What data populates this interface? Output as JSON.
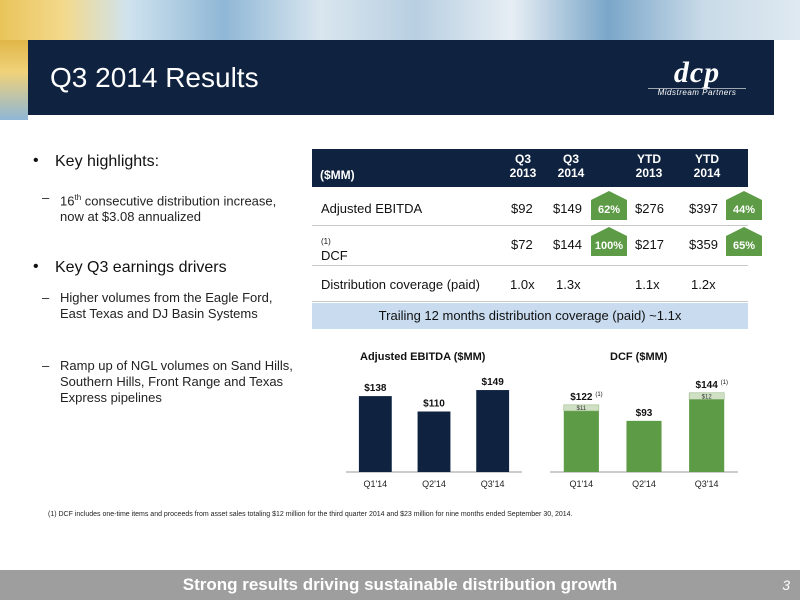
{
  "slide": {
    "title": "Q3 2014 Results",
    "logo_main": "dcp",
    "logo_sub": "Midstream Partners",
    "page_number": "3",
    "footer_text": "Strong results driving sustainable distribution growth",
    "colors": {
      "navy": "#0f2340",
      "green": "#5e9b47",
      "light_blue": "#c8dbef",
      "grey": "#9e9e9e"
    }
  },
  "bullets": {
    "b1": "Key highlights:",
    "b1_sub1_pre": "16",
    "b1_sub1_sup": "th",
    "b1_sub1_post": " consecutive distribution increase, now at $3.08 annualized",
    "b2": "Key Q3 earnings drivers",
    "b2_sub1": "Higher volumes from the Eagle Ford, East Texas and DJ Basin Systems",
    "b2_sub2": "Ramp up of NGL volumes on Sand Hills, Southern Hills, Front Range and Texas Express pipelines",
    "bullet_char": "•",
    "dash_char": "–"
  },
  "table": {
    "unit": "($MM)",
    "headers": [
      {
        "l1": "Q3",
        "l2": "2013"
      },
      {
        "l1": "Q3",
        "l2": "2014"
      },
      {
        "l1": "YTD",
        "l2": "2013"
      },
      {
        "l1": "YTD",
        "l2": "2014"
      }
    ],
    "rows": [
      {
        "label": "Adjusted EBITDA",
        "sup": "",
        "values": [
          "$92",
          "$149",
          "$276",
          "$397"
        ],
        "badge_q3": "62%",
        "badge_ytd": "44%"
      },
      {
        "label": "DCF",
        "sup": "(1)",
        "values": [
          "$72",
          "$144",
          "$217",
          "$359"
        ],
        "badge_q3": "100%",
        "badge_ytd": "65%"
      },
      {
        "label": "Distribution coverage (paid)",
        "sup": "",
        "values": [
          "1.0x",
          "1.3x",
          "1.1x",
          "1.2x"
        ]
      }
    ],
    "trailing": "Trailing 12 months distribution coverage (paid) ~1.1x"
  },
  "footnote": "(1) DCF includes one-time items and proceeds from asset sales totaling $12 million for the third quarter 2014 and $23 million for nine months ended September 30, 2014.",
  "chart_data": [
    {
      "type": "bar",
      "title": "Adjusted EBITDA ($MM)",
      "categories": [
        "Q1'14",
        "Q2'14",
        "Q3'14"
      ],
      "values": [
        138,
        110,
        149
      ],
      "labels": [
        "$138",
        "$110",
        "$149"
      ],
      "color": "#0f2340",
      "ylim": [
        0,
        160
      ]
    },
    {
      "type": "bar",
      "title": "DCF ($MM)",
      "categories": [
        "Q1'14",
        "Q2'14",
        "Q3'14"
      ],
      "values": [
        122,
        93,
        144
      ],
      "labels": [
        "$122",
        "$93",
        "$144"
      ],
      "label_sups": [
        "(1)",
        "",
        "(1)"
      ],
      "one_time": [
        11,
        0,
        12
      ],
      "one_time_labels": [
        "$11",
        "",
        "$12"
      ],
      "color": "#5e9b47",
      "ylim": [
        0,
        160
      ]
    }
  ]
}
